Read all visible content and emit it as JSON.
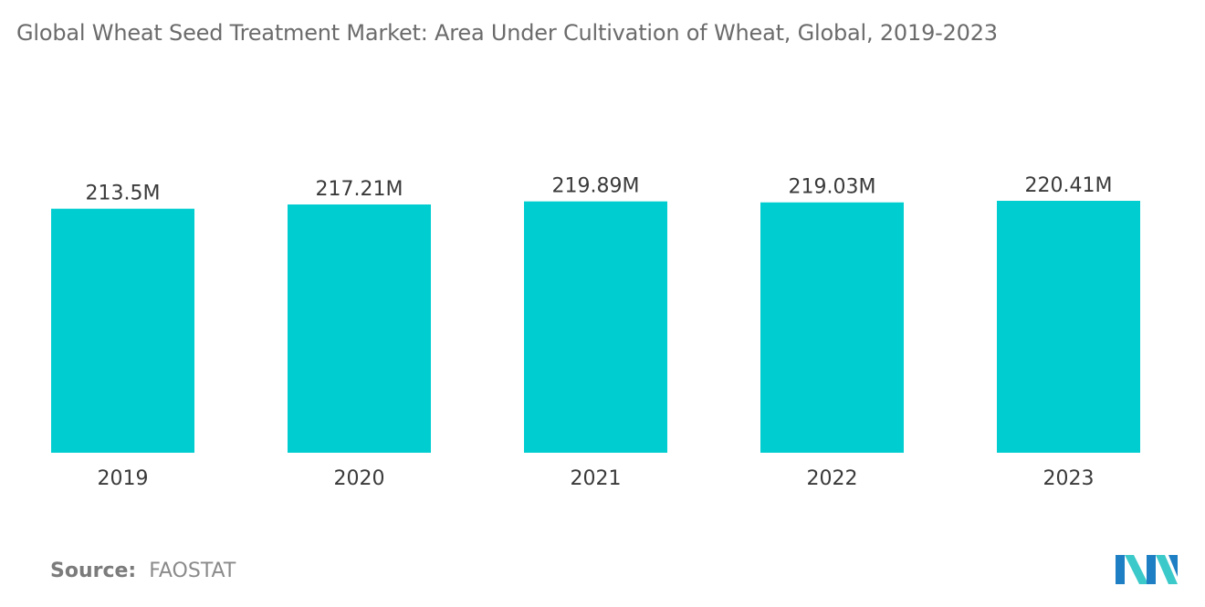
{
  "chart_data": {
    "type": "bar",
    "title": "Global Wheat Seed Treatment Market: Area Under Cultivation of Wheat, Global, 2019-2023",
    "categories": [
      "2019",
      "2020",
      "2021",
      "2022",
      "2023"
    ],
    "values": [
      213.5,
      217.21,
      219.89,
      219.03,
      220.41
    ],
    "value_labels": [
      "213.5M",
      "217.21M",
      "219.89M",
      "219.03M",
      "220.41M"
    ],
    "xlabel": "",
    "ylabel": "",
    "ylim": [
      0,
      220.41
    ],
    "grid": false,
    "bar_color": "#00CDD0"
  },
  "source": {
    "label": "Source:",
    "value": "FAOSTAT"
  },
  "logo": {
    "icon": "mordor-intelligence-logo-icon",
    "colors": [
      "#1e7fc4",
      "#3cc9c9"
    ]
  }
}
